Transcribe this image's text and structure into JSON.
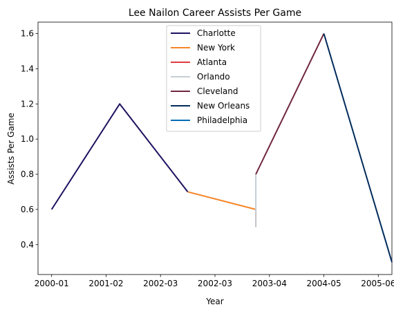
{
  "chart_data": {
    "type": "line",
    "title": "Lee Nailon Career Assists Per Game",
    "xlabel": "Year",
    "ylabel": "Assists Per Game",
    "x_ticks": [
      "2000-01",
      "2001-02",
      "2002-03",
      "2002-03",
      "2003-04",
      "2004-05",
      "2005-06"
    ],
    "xlim": [
      -0.25,
      6.25
    ],
    "ylim": [
      0.23,
      1.665
    ],
    "y_ticks": [
      0.4,
      0.6,
      0.8,
      1.0,
      1.2,
      1.4,
      1.6
    ],
    "grid": false,
    "legend_position": "top-center",
    "series": [
      {
        "name": "Charlotte",
        "color": "#1d1160",
        "points": [
          [
            0,
            0.6
          ],
          [
            1.25,
            1.2
          ],
          [
            2.5,
            0.7
          ]
        ]
      },
      {
        "name": "New York",
        "color": "#f58426",
        "points": [
          [
            2.5,
            0.7
          ],
          [
            3.75,
            0.6
          ]
        ]
      },
      {
        "name": "Atlanta",
        "color": "#e03a3e",
        "points": [
          [
            3.75,
            0.6
          ],
          [
            3.75,
            0.5
          ]
        ]
      },
      {
        "name": "Orlando",
        "color": "#c4ced4",
        "points": [
          [
            3.75,
            0.5
          ],
          [
            3.75,
            0.8
          ]
        ]
      },
      {
        "name": "Cleveland",
        "color": "#6f263d",
        "points": [
          [
            3.75,
            0.8
          ],
          [
            5,
            1.6
          ]
        ]
      },
      {
        "name": "New Orleans",
        "color": "#002b5c",
        "points": [
          [
            5,
            1.6
          ],
          [
            6.25,
            0.3
          ]
        ]
      },
      {
        "name": "Philadelphia",
        "color": "#006bb6",
        "points": []
      }
    ]
  }
}
